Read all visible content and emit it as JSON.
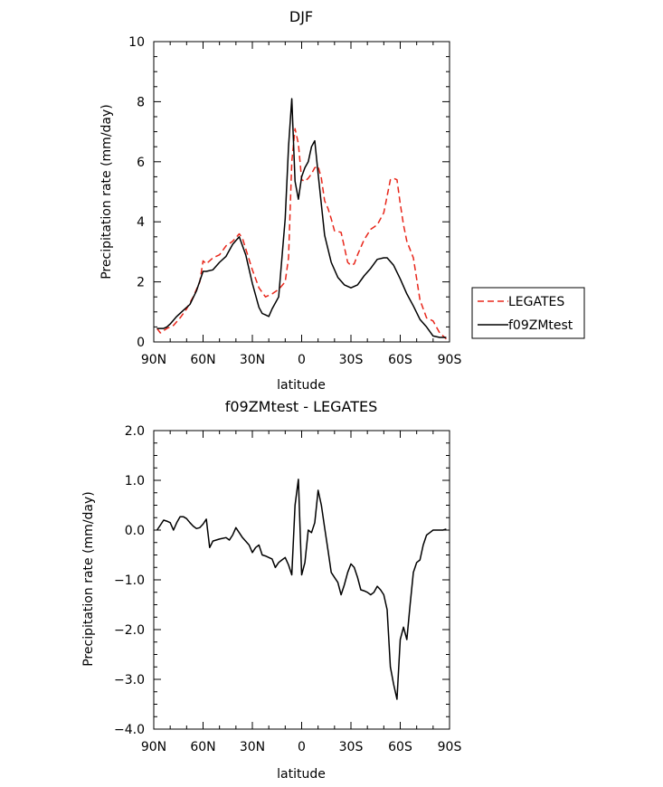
{
  "chart_data": [
    {
      "type": "line",
      "title": "DJF",
      "xlabel": "latitude",
      "ylabel": "Precipitation rate (mm/day)",
      "xlim": [
        90,
        -90
      ],
      "ylim": [
        0,
        10
      ],
      "x_ticks": [
        90,
        60,
        30,
        0,
        -30,
        -60,
        -90
      ],
      "x_tick_labels": [
        "90N",
        "60N",
        "30N",
        "0",
        "30S",
        "60S",
        "90S"
      ],
      "y_ticks": [
        0,
        2,
        4,
        6,
        8,
        10
      ],
      "y_tick_labels": [
        "0",
        "2",
        "4",
        "6",
        "8",
        "10"
      ],
      "legend_position": "right",
      "series": [
        {
          "name": "LEGATES",
          "color": "#e8261a",
          "dash": "dashed",
          "x": [
            88,
            86,
            82,
            78,
            74,
            70,
            66,
            62,
            60,
            58,
            54,
            50,
            46,
            42,
            38,
            36,
            34,
            30,
            26,
            22,
            18,
            14,
            10,
            8,
            6,
            4,
            2,
            0,
            -2,
            -4,
            -6,
            -8,
            -10,
            -12,
            -14,
            -16,
            -18,
            -20,
            -24,
            -28,
            -30,
            -32,
            -34,
            -38,
            -42,
            -46,
            -50,
            -54,
            -56,
            -58,
            -60,
            -62,
            -64,
            -68,
            -72,
            -76,
            -80,
            -84,
            -88
          ],
          "y": [
            0.45,
            0.3,
            0.45,
            0.55,
            0.8,
            1.1,
            1.5,
            2.0,
            2.7,
            2.6,
            2.8,
            2.9,
            3.2,
            3.35,
            3.6,
            3.45,
            3.1,
            2.4,
            1.8,
            1.5,
            1.6,
            1.75,
            2.0,
            2.8,
            6.0,
            7.1,
            6.6,
            5.4,
            5.35,
            5.45,
            5.6,
            5.8,
            5.85,
            5.45,
            4.7,
            4.45,
            4.1,
            3.7,
            3.65,
            2.65,
            2.55,
            2.6,
            2.9,
            3.4,
            3.75,
            3.9,
            4.3,
            5.4,
            5.45,
            5.4,
            4.6,
            3.9,
            3.35,
            2.8,
            1.4,
            0.8,
            0.7,
            0.3,
            0.1
          ]
        },
        {
          "name": "f09ZMtest",
          "color": "#000000",
          "dash": "solid",
          "x": [
            88,
            84,
            82,
            80,
            76,
            72,
            68,
            64,
            60,
            58,
            54,
            50,
            46,
            42,
            38,
            34,
            30,
            26,
            24,
            22,
            20,
            18,
            14,
            10,
            8,
            6,
            4,
            2,
            0,
            -2,
            -4,
            -6,
            -8,
            -10,
            -14,
            -18,
            -22,
            -26,
            -30,
            -34,
            -38,
            -42,
            -46,
            -50,
            -52,
            -56,
            -60,
            -64,
            -68,
            -72,
            -76,
            -80,
            -84,
            -88
          ],
          "y": [
            0.45,
            0.45,
            0.5,
            0.6,
            0.85,
            1.05,
            1.25,
            1.7,
            2.35,
            2.35,
            2.4,
            2.65,
            2.85,
            3.25,
            3.5,
            2.9,
            1.95,
            1.15,
            0.95,
            0.9,
            0.85,
            1.1,
            1.5,
            4.1,
            6.5,
            8.1,
            5.35,
            4.75,
            5.5,
            5.8,
            6.0,
            6.5,
            6.7,
            5.6,
            3.55,
            2.65,
            2.15,
            1.9,
            1.8,
            1.9,
            2.2,
            2.45,
            2.75,
            2.8,
            2.8,
            2.55,
            2.1,
            1.6,
            1.2,
            0.75,
            0.5,
            0.2,
            0.15,
            0.15
          ]
        }
      ]
    },
    {
      "type": "line",
      "title": "f09ZMtest - LEGATES",
      "xlabel": "latitude",
      "ylabel": "Precipitation rate (mm/day)",
      "xlim": [
        90,
        -90
      ],
      "ylim": [
        -4,
        2
      ],
      "x_ticks": [
        90,
        60,
        30,
        0,
        -30,
        -60,
        -90
      ],
      "x_tick_labels": [
        "90N",
        "60N",
        "30N",
        "0",
        "30S",
        "60S",
        "90S"
      ],
      "y_ticks": [
        -4,
        -3,
        -2,
        -1,
        0,
        1,
        2
      ],
      "y_tick_labels": [
        "−4.0",
        "−3.0",
        "−2.0",
        "−1.0",
        "0.0",
        "1.0",
        "2.0"
      ],
      "series": [
        {
          "color": "#000000",
          "dash": "solid",
          "x": [
            88,
            86,
            84,
            82,
            80,
            78,
            76,
            74,
            72,
            70,
            68,
            66,
            64,
            62,
            60,
            58,
            56,
            54,
            50,
            46,
            44,
            42,
            40,
            36,
            32,
            30,
            28,
            26,
            24,
            22,
            20,
            18,
            16,
            14,
            12,
            10,
            8,
            6,
            4,
            2,
            0,
            -2,
            -4,
            -6,
            -8,
            -10,
            -12,
            -14,
            -16,
            -18,
            -20,
            -22,
            -24,
            -26,
            -28,
            -30,
            -32,
            -34,
            -36,
            -38,
            -40,
            -42,
            -44,
            -46,
            -48,
            -50,
            -52,
            -54,
            -56,
            -58,
            -60,
            -62,
            -64,
            -66,
            -68,
            -70,
            -72,
            -74,
            -76,
            -78,
            -80,
            -82,
            -84,
            -86,
            -88
          ],
          "y": [
            0.0,
            0.1,
            0.2,
            0.18,
            0.15,
            0.0,
            0.15,
            0.27,
            0.27,
            0.23,
            0.15,
            0.08,
            0.03,
            0.05,
            0.12,
            0.22,
            -0.35,
            -0.22,
            -0.18,
            -0.15,
            -0.2,
            -0.1,
            0.05,
            -0.15,
            -0.3,
            -0.45,
            -0.35,
            -0.3,
            -0.5,
            -0.52,
            -0.55,
            -0.58,
            -0.75,
            -0.65,
            -0.6,
            -0.55,
            -0.7,
            -0.9,
            0.5,
            1.02,
            -0.9,
            -0.65,
            0.0,
            -0.05,
            0.15,
            0.8,
            0.5,
            0.05,
            -0.4,
            -0.85,
            -0.95,
            -1.05,
            -1.3,
            -1.1,
            -0.85,
            -0.68,
            -0.75,
            -0.95,
            -1.2,
            -1.22,
            -1.25,
            -1.3,
            -1.25,
            -1.13,
            -1.2,
            -1.3,
            -1.6,
            -2.75,
            -3.1,
            -3.4,
            -2.2,
            -1.95,
            -2.2,
            -1.5,
            -0.85,
            -0.65,
            -0.6,
            -0.3,
            -0.1,
            -0.05,
            0.0,
            0.0,
            0.0,
            0.0,
            0.02
          ]
        }
      ]
    }
  ]
}
